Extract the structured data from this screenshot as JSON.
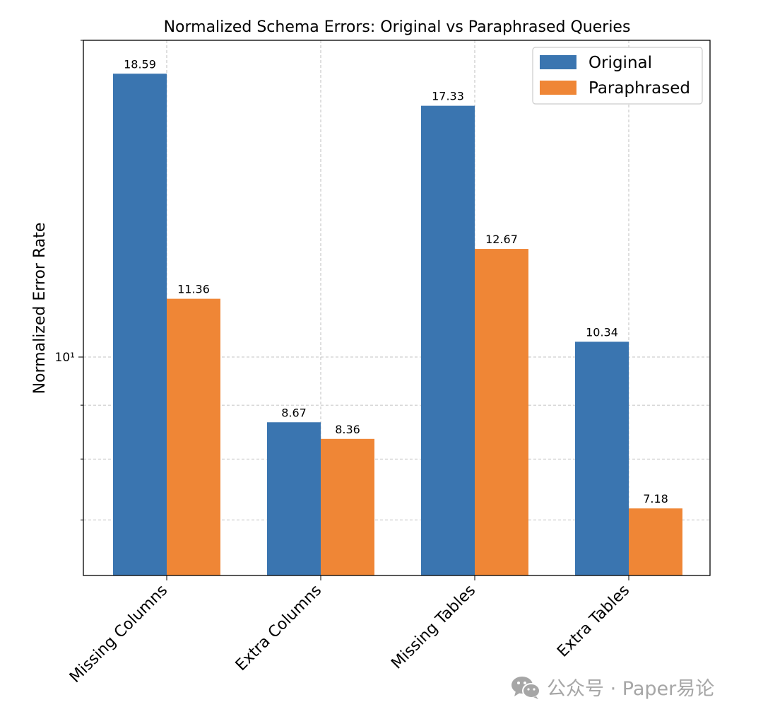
{
  "chart_data": {
    "type": "bar",
    "title": "Normalized Schema Errors: Original vs Paraphrased Queries",
    "xlabel": "",
    "ylabel": "Normalized Error Rate",
    "yscale": "log",
    "ylim": [
      6.2,
      20.0
    ],
    "y_major_tick_label": "10¹",
    "grid": true,
    "legend_position": "top-right",
    "categories": [
      "Missing Columns",
      "Extra Columns",
      "Missing Tables",
      "Extra Tables"
    ],
    "series": [
      {
        "name": "Original",
        "color": "#3a75b0",
        "values": [
          18.59,
          8.67,
          17.33,
          10.34
        ],
        "labels": [
          "18.59",
          "8.67",
          "17.33",
          "10.34"
        ]
      },
      {
        "name": "Paraphrased",
        "color": "#ef8636",
        "values": [
          11.36,
          8.36,
          12.67,
          7.18
        ],
        "labels": [
          "11.36",
          "8.36",
          "12.67",
          "7.18"
        ]
      }
    ]
  },
  "watermark": {
    "text": "公众号 · Paper易论",
    "icon": "wechat-icon"
  }
}
